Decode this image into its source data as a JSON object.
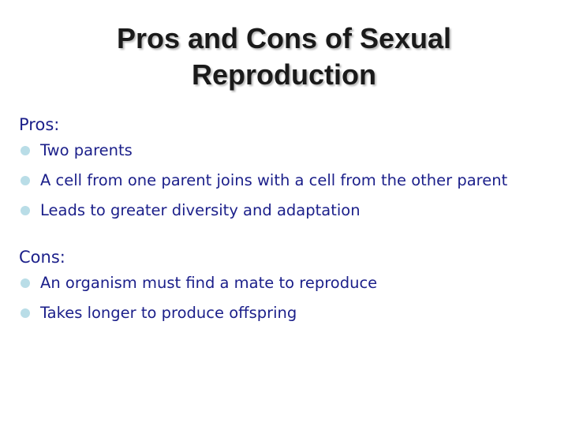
{
  "title_line1": "Pros and Cons of Sexual",
  "title_line2": "Reproduction",
  "pros": {
    "heading": "Pros:",
    "items": [
      "Two parents",
      "A cell from one parent joins with a cell from the other parent",
      "Leads to greater diversity and adaptation"
    ]
  },
  "cons": {
    "heading": "Cons:",
    "items": [
      "An organism must find a mate to reproduce",
      "Takes longer to produce offspring"
    ]
  },
  "colors": {
    "text_accent": "#1b1f8a",
    "bullet": "#b9dde7",
    "title": "#1a1a1a"
  },
  "icons": {
    "bullet": "circle-bullet-icon"
  }
}
